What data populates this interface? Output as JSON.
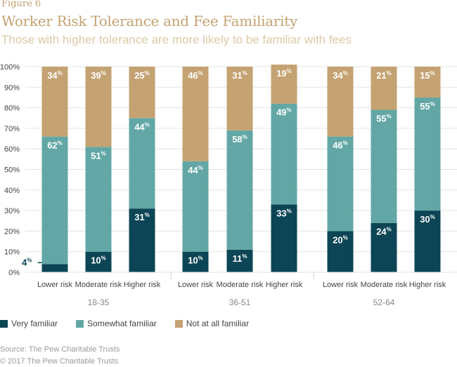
{
  "figure_label": "Figure 6",
  "chart_data": {
    "type": "bar",
    "stacked": true,
    "title": "Worker Risk Tolerance and Fee Familiarity",
    "subtitle": "Those with higher tolerance are more likely to be familiar with fees",
    "xlabel": "",
    "ylabel": "",
    "ylim": [
      0,
      100
    ],
    "yticks": [
      "0%",
      "10%",
      "20%",
      "30%",
      "40%",
      "50%",
      "60%",
      "70%",
      "80%",
      "90%",
      "100%"
    ],
    "grid": true,
    "groups": [
      {
        "label": "18-35",
        "categories": [
          "Lower risk",
          "Moderate risk",
          "Higher risk"
        ]
      },
      {
        "label": "36-51",
        "categories": [
          "Lower risk",
          "Moderate risk",
          "Higher risk"
        ]
      },
      {
        "label": "52-64",
        "categories": [
          "Lower risk",
          "Moderate risk",
          "Higher risk"
        ]
      }
    ],
    "categories": [
      "Lower risk",
      "Moderate risk",
      "Higher risk",
      "Lower risk",
      "Moderate risk",
      "Higher risk",
      "Lower risk",
      "Moderate risk",
      "Higher risk"
    ],
    "series": [
      {
        "name": "Very familiar",
        "color": "#0c4555",
        "values": [
          4,
          10,
          31,
          10,
          11,
          33,
          20,
          24,
          30
        ]
      },
      {
        "name": "Somewhat familiar",
        "color": "#62a7a5",
        "values": [
          62,
          51,
          44,
          44,
          58,
          49,
          46,
          55,
          55
        ]
      },
      {
        "name": "Not at all familiar",
        "color": "#c4a272",
        "values": [
          34,
          39,
          25,
          46,
          31,
          19,
          34,
          21,
          15
        ]
      }
    ],
    "label_suffix": "%",
    "legend_position": "bottom-left"
  },
  "footer": {
    "source": "Source: The Pew Charitable Trusts",
    "copyright": "© 2017 The Pew Charitable Trusts"
  }
}
